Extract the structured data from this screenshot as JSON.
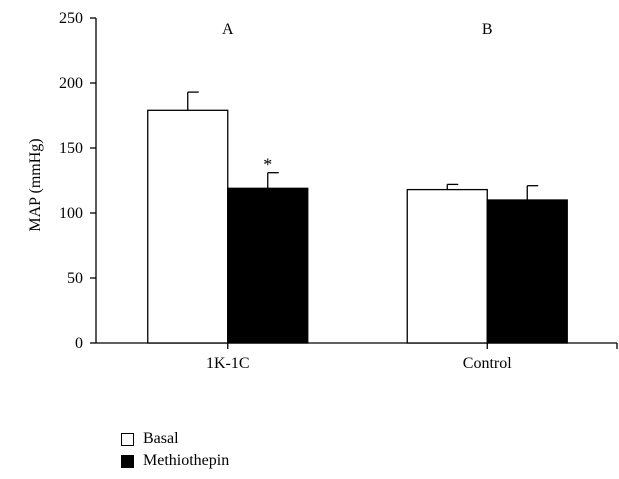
{
  "chart_data": {
    "type": "bar",
    "title": "",
    "xlabel": "",
    "ylabel": "MAP (mmHg)",
    "ylim": [
      0,
      250
    ],
    "yticks": [
      0,
      50,
      100,
      150,
      200,
      250
    ],
    "categories": [
      "1K-1C",
      "Control"
    ],
    "group_labels": [
      "A",
      "B"
    ],
    "series": [
      {
        "name": "Basal",
        "color": "#ffffff",
        "values": [
          179,
          118
        ],
        "errors": [
          14,
          4
        ]
      },
      {
        "name": "Methiothepin",
        "color": "#000000",
        "values": [
          119,
          110
        ],
        "errors": [
          12,
          11
        ]
      }
    ],
    "annotations": [
      {
        "text": "*",
        "category": "1K-1C",
        "series": "Methiothepin"
      }
    ],
    "grid": false,
    "legend_position": "bottom-left"
  }
}
